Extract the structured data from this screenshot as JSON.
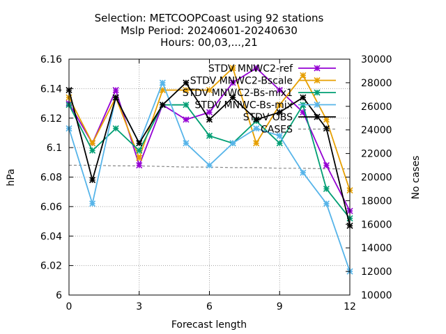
{
  "chart_data": {
    "type": "line",
    "title_lines": [
      "Selection: METCOOPCoast using    92 stations",
      "Mslp   Period: 20240601-20240630",
      "Hours: 00,03,...,21"
    ],
    "xlabel": "Forecast length",
    "ylabel": "hPa",
    "y2label": "No cases",
    "xlim": [
      0,
      12
    ],
    "ylim": [
      6.0,
      6.16
    ],
    "y2lim": [
      10000,
      30000
    ],
    "xticks": [
      "0",
      "3",
      "6",
      "9",
      "12"
    ],
    "yticks": [
      "6",
      "6.02",
      "6.04",
      "6.06",
      "6.08",
      "6.1",
      "6.12",
      "6.14",
      "6.16"
    ],
    "y2ticks": [
      "10000",
      "12000",
      "14000",
      "16000",
      "18000",
      "20000",
      "22000",
      "24000",
      "26000",
      "28000",
      "30000"
    ],
    "grid": true,
    "legend_position": "top-right",
    "x": [
      0,
      1,
      2,
      3,
      4,
      5,
      6,
      7,
      8,
      9,
      10,
      11,
      12
    ],
    "series": [
      {
        "name": "STDV MNWC2-ref",
        "color": "#9400d3",
        "axis": "y",
        "values": [
          6.13,
          6.103,
          6.139,
          6.088,
          6.129,
          6.119,
          6.124,
          6.144,
          6.154,
          6.139,
          6.124,
          6.088,
          6.057
        ]
      },
      {
        "name": "STDV MNWC2-Bscale",
        "color": "#e69f00",
        "axis": "y",
        "values": [
          6.134,
          6.103,
          6.134,
          6.093,
          6.139,
          6.139,
          6.139,
          6.154,
          6.103,
          6.129,
          6.149,
          6.119,
          6.071
        ]
      },
      {
        "name": "STDV MNWC2-Bs-mix1",
        "color": "#009e73",
        "axis": "y",
        "values": [
          6.129,
          6.098,
          6.113,
          6.098,
          6.129,
          6.129,
          6.108,
          6.103,
          6.118,
          6.103,
          6.129,
          6.072,
          6.052
        ]
      },
      {
        "name": "STDV MNWC-Bs-mix",
        "color": "#56b4e9",
        "axis": "y",
        "values": [
          6.113,
          6.062,
          6.134,
          6.103,
          6.144,
          6.103,
          6.088,
          6.103,
          6.113,
          6.108,
          6.083,
          6.062,
          6.016
        ]
      },
      {
        "name": "STDV OBS",
        "color": "#000000",
        "axis": "y",
        "values": [
          6.139,
          6.078,
          6.134,
          6.103,
          6.129,
          6.144,
          6.119,
          6.134,
          6.119,
          6.124,
          6.134,
          6.113,
          6.047
        ]
      },
      {
        "name": "CASES",
        "color": "#888888",
        "axis": "y2",
        "dashed": true,
        "values": [
          21000,
          21000,
          20950,
          20950,
          20900,
          20850,
          20850,
          20800,
          20800,
          20750,
          20750,
          20700,
          20700
        ]
      }
    ]
  }
}
